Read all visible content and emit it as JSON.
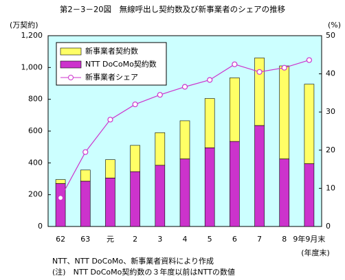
{
  "chart_data": {
    "type": "bar",
    "title": "第2－3－20図　無線呼出し契約数及び新事業者のシェアの推移",
    "y_label": "(万契約)",
    "y2_label": "(%)",
    "x_note": "(年度末)",
    "notes": [
      "NTT、NTT DoCoMo、新事業者資料により作成",
      "(注)　NTT DoCoMo契約数の３年度以前はNTTの数値"
    ],
    "categories": [
      "62",
      "63",
      "元",
      "2",
      "3",
      "4",
      "5",
      "6",
      "7",
      "8",
      "9年9月末"
    ],
    "series": [
      {
        "name": "新事業者契約数",
        "color": "#ffff66",
        "values": [
          25,
          70,
          115,
          165,
          205,
          240,
          310,
          400,
          425,
          585,
          500
        ]
      },
      {
        "name": "NTT DoCoMo契約数",
        "color": "#cc33cc",
        "values": [
          270,
          285,
          305,
          345,
          385,
          425,
          495,
          535,
          635,
          425,
          395
        ]
      },
      {
        "name": "新事業者シェア",
        "color": "#cc33cc",
        "type": "line",
        "axis": "y2",
        "values": [
          7.5,
          19.5,
          28,
          32,
          34.5,
          36.6,
          38.4,
          42.5,
          40.5,
          41.6,
          43.6
        ]
      }
    ],
    "ylim": [
      0,
      1200
    ],
    "yticks": [
      0,
      200,
      400,
      600,
      800,
      {
        "value": 1000,
        "label": "1,000"
      },
      {
        "value": 1200,
        "label": "1,200"
      }
    ],
    "y2lim": [
      0,
      50
    ],
    "y2ticks": [
      0,
      10,
      20,
      30,
      40,
      50
    ],
    "background": "#ccffff"
  }
}
